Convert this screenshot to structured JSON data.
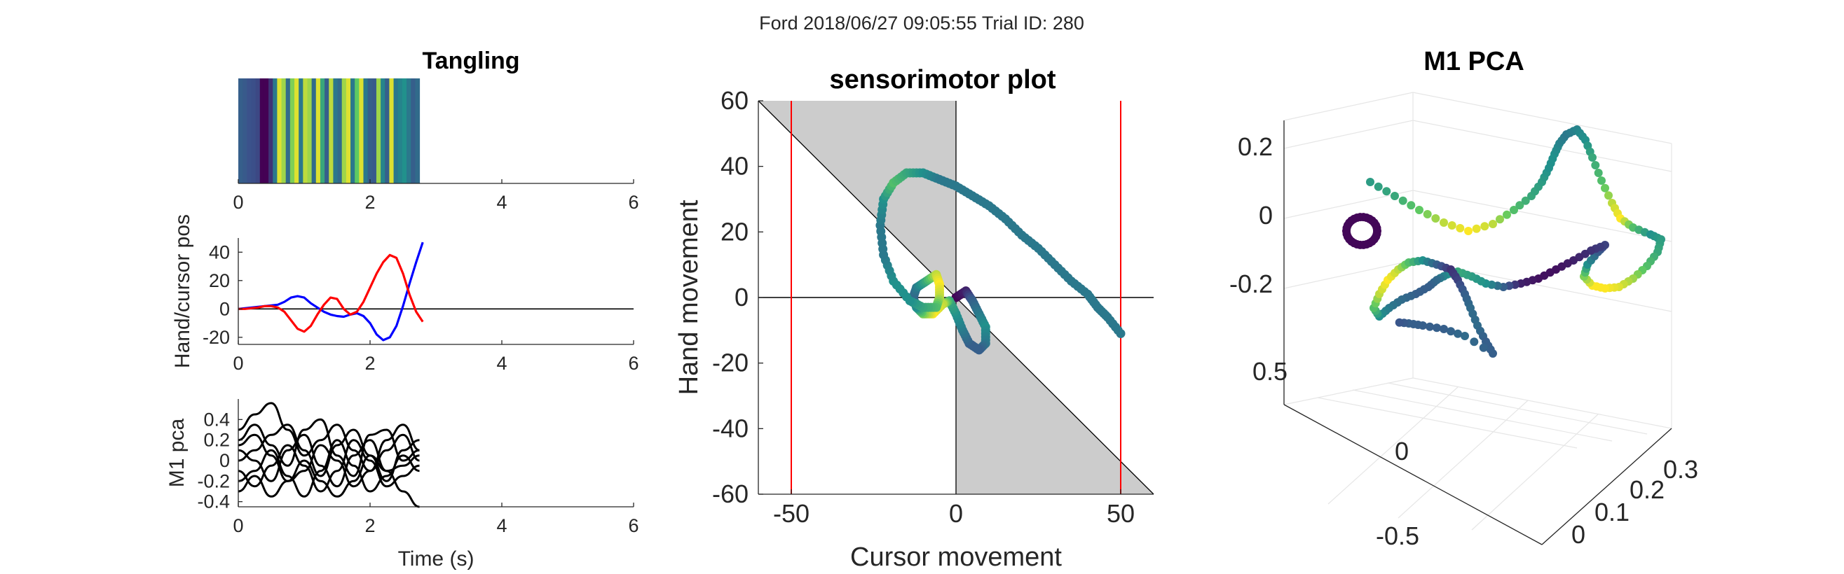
{
  "figure": {
    "suptitle": "Ford 2018/06/27 09:05:55 Trial ID: 280"
  },
  "colors": {
    "hand": "#0000ff",
    "cursor": "#ff0000",
    "pca_lines": "#000000",
    "shade": "#cccccc",
    "boundary": "#ff0000",
    "viridis": [
      "#440154",
      "#3b528b",
      "#21918c",
      "#5ec962",
      "#fde725"
    ]
  },
  "chart_data": [
    {
      "id": "tangling",
      "type": "heatmap",
      "title": "Tangling",
      "xlabel": "",
      "ylabel": "",
      "xlim": [
        0,
        6
      ],
      "xticks": [
        0,
        2,
        4,
        6
      ],
      "x_extent": [
        0,
        2.75
      ],
      "colormap": "viridis",
      "values": [
        0.3,
        0.28,
        0.25,
        0.24,
        0.22,
        0.0,
        0.0,
        0.15,
        0.4,
        0.95,
        0.85,
        0.35,
        0.8,
        0.95,
        0.4,
        0.9,
        0.85,
        0.35,
        0.95,
        0.6,
        0.3,
        0.9,
        0.4,
        0.35,
        0.85,
        0.95,
        0.4,
        0.75,
        0.95,
        0.4,
        0.3,
        0.28,
        0.85,
        0.45,
        0.3,
        0.95,
        0.4,
        0.45,
        0.5,
        0.4,
        0.3,
        0.35
      ]
    },
    {
      "id": "hand_cursor",
      "type": "line",
      "title": "",
      "xlabel": "",
      "ylabel": "Hand/cursor pos",
      "xlim": [
        0,
        6
      ],
      "ylim": [
        -25,
        50
      ],
      "xticks": [
        0,
        2,
        4,
        6
      ],
      "yticks": [
        -20,
        0,
        20,
        40
      ],
      "reference_line": 0,
      "x": [
        0,
        0.1,
        0.2,
        0.3,
        0.4,
        0.5,
        0.6,
        0.7,
        0.8,
        0.9,
        1.0,
        1.1,
        1.2,
        1.3,
        1.4,
        1.5,
        1.6,
        1.7,
        1.8,
        1.9,
        2.0,
        2.1,
        2.2,
        2.3,
        2.4,
        2.5,
        2.6,
        2.7,
        2.8
      ],
      "series": [
        {
          "name": "hand",
          "color": "#0000ff",
          "values": [
            0,
            0.5,
            1,
            1.5,
            2,
            2.5,
            3,
            5,
            8,
            9,
            8,
            4,
            1,
            -2,
            -4,
            -5,
            -5.5,
            -4,
            -3,
            -5,
            -10,
            -18,
            -22,
            -20,
            -12,
            2,
            18,
            33,
            47
          ]
        },
        {
          "name": "cursor",
          "color": "#ff0000",
          "values": [
            0,
            0,
            0.5,
            1,
            2,
            2,
            1,
            -2,
            -8,
            -14,
            -16,
            -12,
            -4,
            3,
            8,
            7,
            0,
            -4,
            -2,
            5,
            15,
            25,
            33,
            38,
            36,
            25,
            10,
            -2,
            -9
          ]
        }
      ]
    },
    {
      "id": "m1_pca_traces",
      "type": "line",
      "title": "",
      "xlabel": "Time (s)",
      "ylabel": "M1 pca",
      "xlim": [
        0,
        6
      ],
      "ylim": [
        -0.45,
        0.6
      ],
      "xticks": [
        0,
        2,
        4,
        6
      ],
      "yticks": [
        -0.4,
        -0.2,
        0,
        0.2,
        0.4
      ],
      "x": [
        0,
        0.25,
        0.5,
        0.75,
        1.0,
        1.25,
        1.5,
        1.75,
        2.0,
        2.25,
        2.5,
        2.75
      ],
      "series": [
        {
          "color": "#000000",
          "values": [
            0.3,
            0.45,
            0.56,
            0.3,
            0.05,
            0.2,
            0.35,
            0.1,
            -0.1,
            0.2,
            0.35,
            0.1
          ]
        },
        {
          "color": "#000000",
          "values": [
            0.2,
            0.35,
            0.15,
            -0.05,
            0.3,
            0.4,
            0.05,
            -0.15,
            0.25,
            0.3,
            0.0,
            0.1
          ]
        },
        {
          "color": "#000000",
          "values": [
            0.1,
            0.0,
            -0.2,
            0.1,
            0.25,
            -0.05,
            -0.25,
            0.05,
            0.2,
            -0.1,
            -0.05,
            0.05
          ]
        },
        {
          "color": "#000000",
          "values": [
            0.0,
            0.1,
            0.25,
            0.35,
            0.1,
            -0.15,
            0.15,
            0.3,
            0.05,
            -0.2,
            0.1,
            0.2
          ]
        },
        {
          "color": "#000000",
          "values": [
            -0.1,
            -0.25,
            -0.05,
            0.15,
            -0.05,
            -0.3,
            -0.1,
            0.2,
            0.0,
            -0.25,
            -0.15,
            -0.05
          ]
        },
        {
          "color": "#000000",
          "values": [
            -0.2,
            -0.1,
            0.1,
            -0.15,
            -0.35,
            -0.1,
            0.2,
            -0.05,
            -0.3,
            -0.15,
            0.05,
            -0.1
          ]
        },
        {
          "color": "#000000",
          "values": [
            0.15,
            0.25,
            0.05,
            -0.2,
            -0.1,
            0.15,
            0.0,
            -0.25,
            -0.1,
            0.1,
            0.25,
            0.0
          ]
        },
        {
          "color": "#000000",
          "values": [
            -0.3,
            -0.15,
            -0.35,
            -0.2,
            0.0,
            -0.2,
            -0.35,
            -0.2,
            0.05,
            -0.1,
            -0.3,
            -0.45
          ]
        }
      ]
    },
    {
      "id": "sensorimotor",
      "type": "scatter",
      "title": "sensorimotor plot",
      "xlabel": "Cursor movement",
      "ylabel": "Hand movement",
      "xlim": [
        -60,
        60
      ],
      "ylim": [
        -60,
        60
      ],
      "xticks": [
        -50,
        0,
        50
      ],
      "yticks": [
        -60,
        -40,
        -20,
        0,
        20,
        40,
        60
      ],
      "reference_line": 0,
      "boundaries_x": [
        -50,
        50
      ],
      "path": [
        [
          0,
          0
        ],
        [
          3,
          2
        ],
        [
          5,
          -1
        ],
        [
          7,
          -5
        ],
        [
          9,
          -9
        ],
        [
          9,
          -14
        ],
        [
          7,
          -16
        ],
        [
          4,
          -14
        ],
        [
          2,
          -10
        ],
        [
          0,
          -5
        ],
        [
          -2,
          -1
        ],
        [
          -4,
          -2
        ],
        [
          -7,
          -5
        ],
        [
          -10,
          -5
        ],
        [
          -12,
          -3
        ],
        [
          -13,
          0
        ],
        [
          -12,
          3
        ],
        [
          -9,
          5
        ],
        [
          -6,
          7
        ],
        [
          -5,
          4
        ],
        [
          -5,
          0
        ],
        [
          -6,
          -3
        ],
        [
          -10,
          -3
        ],
        [
          -14,
          -1
        ],
        [
          -19,
          5
        ],
        [
          -22,
          13
        ],
        [
          -23,
          22
        ],
        [
          -22,
          30
        ],
        [
          -19,
          35
        ],
        [
          -15,
          38
        ],
        [
          -10,
          38
        ],
        [
          -5,
          36
        ],
        [
          0,
          34
        ],
        [
          5,
          31
        ],
        [
          10,
          28
        ],
        [
          15,
          24
        ],
        [
          20,
          19
        ],
        [
          25,
          15
        ],
        [
          30,
          10
        ],
        [
          35,
          5
        ],
        [
          40,
          1
        ],
        [
          43,
          -3
        ],
        [
          46,
          -6
        ],
        [
          50,
          -11
        ]
      ],
      "path_color_values": [
        0.0,
        0.1,
        0.3,
        0.4,
        0.5,
        0.4,
        0.3,
        0.3,
        0.4,
        0.5,
        0.6,
        0.9,
        1.0,
        0.8,
        0.5,
        0.3,
        0.4,
        0.6,
        0.9,
        1.0,
        0.9,
        0.7,
        0.6,
        0.5,
        0.5,
        0.4,
        0.4,
        0.5,
        0.7,
        0.6,
        0.5,
        0.4,
        0.4,
        0.4,
        0.4,
        0.4,
        0.4,
        0.4,
        0.4,
        0.4,
        0.4,
        0.4,
        0.4,
        0.4
      ]
    },
    {
      "id": "m1_pca_3d",
      "type": "scatter",
      "title": "M1 PCA",
      "xlabel": "",
      "ylabel": "",
      "zticks": [
        -0.2,
        0,
        0.2
      ],
      "yticks": [
        -0.5,
        0,
        0.5
      ],
      "xticks": [
        0,
        0.1,
        0.2,
        0.3
      ]
    }
  ]
}
